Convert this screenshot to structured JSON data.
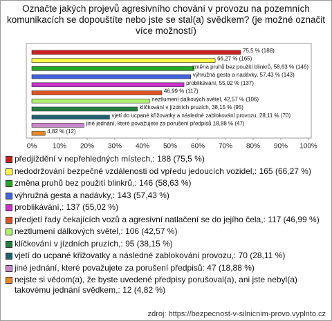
{
  "chart_data": {
    "type": "barh",
    "title": "Označte jakých projevů agresivního chování v provozu na pozemních komunikacích se dopouštíte nebo jste se stal(a) svědkem? (je možné označit více možností)",
    "values": [
      75.5,
      66.27,
      58.63,
      57.43,
      55.02,
      46.99,
      42.57,
      38.15,
      28.11,
      18.88,
      4.82
    ],
    "value_labels": [
      "75,5 % (188)",
      "66,27 % (165)",
      "změna pruhů bez použití blinkrů, 58,63 % (146)",
      "výhružná gesta a nadávky, 57,43 % (143)",
      "problikávání, 55,02 % (137)",
      "46,99 % (117)",
      "neztlumení dálkových světel, 42,57 % (106)",
      "klíčkování v jízdních pruzích, 38,15 % (95)",
      "vjetí do ucpané křižovatky a následné zablokování provozu, 28,11 % (70)",
      "jiné jednání, které považujete za porušení předpisů 18,88 % (47)",
      "4,82 % (12)"
    ],
    "colors": [
      "#cc2020",
      "#ffff40",
      "#22aa22",
      "#4060dd",
      "#cc33cc",
      "#e05020",
      "#b0ee70",
      "#208040",
      "#206070",
      "#cc88cc",
      "#ee8820"
    ],
    "legend": [
      "předjíždění v nepřehledných místech,: 188 (75,5 %)",
      "nedodržování bezpečné vzdálenosti od vpředu jedoucích vozidel,: 165 (66,27 %)",
      "změna pruhů bez použití blinkrů,: 146 (58,63 %)",
      "výhružná gesta a nadávky,: 143 (57,43 %)",
      "problikávání,: 137 (55,02 %)",
      "předjetí řady čekajících vozů a agresivní natlačení se do jejího čela,: 117 (46,99 %)",
      "neztlumení dálkových světel,: 106 (42,57 %)",
      "klíčkování v jízdních pruzích,: 95 (38,15 %)",
      "vjetí do ucpané křižovatky a následné zablokování provozu,: 70 (28,11 %)",
      "jiné jednání, které považujete za porušení předpisů: 47 (18,88 %)",
      "nejste si vědom(a), že byste uvedené předpisy porušoval(a), ani jste nebyl(a) takovému jednání svědkem,: 12 (4,82 %)"
    ],
    "xlim": [
      0,
      100
    ],
    "xticks": [
      {
        "value": 0,
        "label": "0%"
      },
      {
        "value": 10,
        "label": "10%"
      },
      {
        "value": 20,
        "label": "20%"
      },
      {
        "value": 30,
        "label": "30%"
      },
      {
        "value": 40,
        "label": "40%"
      },
      {
        "value": 50,
        "label": "50%"
      },
      {
        "value": 60,
        "label": "60%"
      },
      {
        "value": 70,
        "label": "70%"
      },
      {
        "value": 80,
        "label": "80%"
      },
      {
        "value": 90,
        "label": "90%"
      },
      {
        "value": 100,
        "label": "100%"
      }
    ],
    "source": "zdroj: https://bezpecnost-v-silnicnim-provo.vyplnto.cz"
  }
}
